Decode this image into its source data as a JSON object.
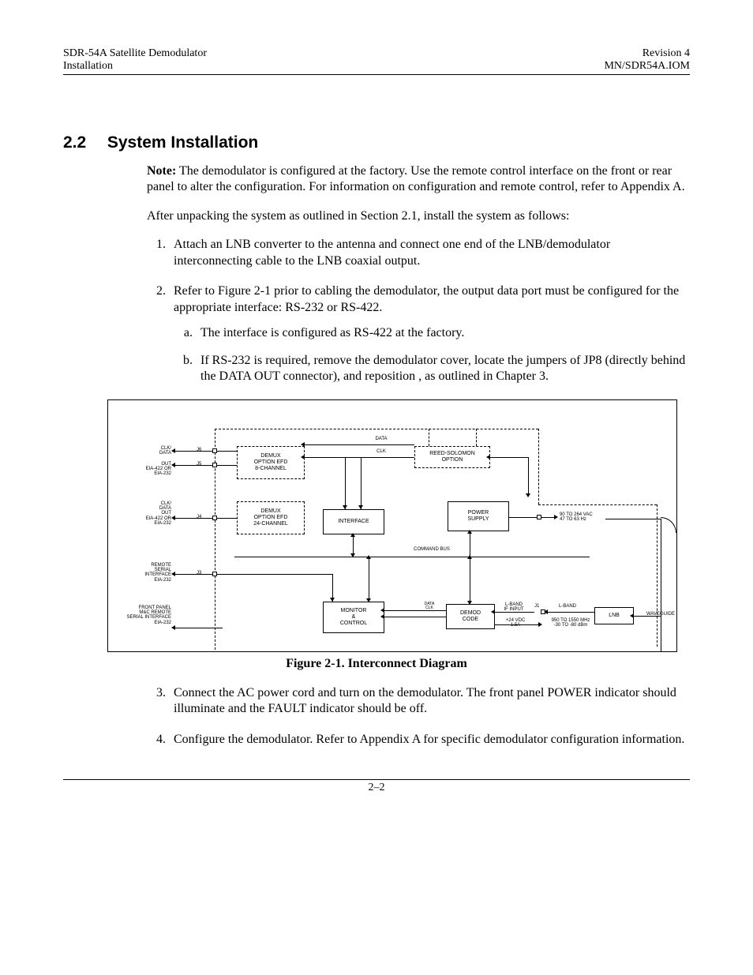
{
  "header": {
    "left_line1": "SDR-54A Satellite Demodulator",
    "left_line2": "Installation",
    "right_line1": "Revision 4",
    "right_line2": "MN/SDR54A.IOM"
  },
  "section": {
    "number": "2.2",
    "title": "System Installation"
  },
  "body": {
    "note_label": "Note:",
    "note_text": " The demodulator is configured at the factory. Use the remote control interface on the front or rear panel to alter the configuration. For information on configuration and remote control, refer to Appendix A.",
    "after_unpack": "After unpacking the system as outlined in Section 2.1, install the system as follows:",
    "step1": "Attach an LNB converter to the antenna and connect one end of the LNB/demodulator interconnecting cable to the LNB coaxial output.",
    "step2": "Refer to Figure 2-1 prior to cabling the demodulator, the output data port must be configured for the appropriate interface: RS-232 or RS-422.",
    "step2a": "The interface is configured as RS-422 at the factory.",
    "step2b": "If RS-232 is required, remove the demodulator cover, locate the jumpers of JP8 (directly behind the DATA OUT connector), and reposition , as outlined in Chapter 3.",
    "step3": "Connect the AC power cord and turn on the demodulator. The front panel POWER indicator should illuminate and the FAULT indicator should be off.",
    "step4": "Configure the demodulator. Refer to Appendix A for specific demodulator configuration information."
  },
  "figure": {
    "caption": "Figure 2-1.  Interconnect Diagram"
  },
  "diagram": {
    "boxes": {
      "demux8": {
        "lines": [
          "DEMUX",
          "OPTION EFD",
          "8-CHANNEL"
        ]
      },
      "demux24": {
        "lines": [
          "DEMUX",
          "OPTION EFD",
          "24-CHANNEL"
        ]
      },
      "interface": "INTERFACE",
      "reedsolomon": {
        "lines": [
          "REED-SOLOMON",
          "OPTION"
        ]
      },
      "power": {
        "lines": [
          "POWER",
          "SUPPLY"
        ]
      },
      "monitor": {
        "lines": [
          "MONITOR",
          "&",
          "CONTROL"
        ]
      },
      "demod": {
        "lines": [
          "DEMOD",
          "CODE"
        ]
      },
      "lnb": "LNB"
    },
    "labels": {
      "clkdata1": "CLK/\nDATA",
      "out_eia1": "OUT\nEIA-422 OR\nEIA-232",
      "clkdata2": "CLK/\nDATA\nOUT\nEIA-422 OR\nEIA-232",
      "remote_serial": "REMOTE\nSERIAL\nINTERFACE\nEIA-232",
      "front_panel": "FRONT PANEL\nM&C REMOTE\nSERIAL INTERFACE\nEIA-232",
      "j6": "J6",
      "j5": "J5",
      "j4": "J4",
      "j3": "J3",
      "j1": "J1",
      "data": "DATA",
      "clk": "CLK",
      "command_bus": "COMMAND BUS",
      "data_clk_small": "DATA\nCLK",
      "lband_if": "L-BAND\nIF INPUT",
      "lband": "L-BAND",
      "v24": "+24 VDC\n1.5A",
      "pwr_in": "90 TO 264 VAC\n47 TO 63 Hz",
      "freq_range": "950 TO 1550 MHz\n-30 TO -80 dBm",
      "waveguide": "WAVEGUIDE"
    }
  },
  "footer": {
    "page_num": "2–2"
  }
}
